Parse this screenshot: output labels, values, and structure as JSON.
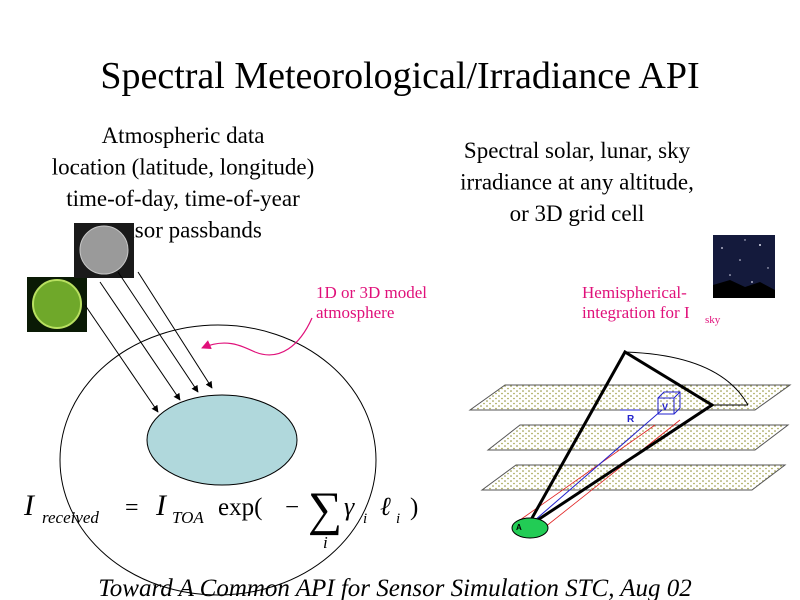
{
  "title": "Spectral Meteorological/Irradiance API",
  "inputs": {
    "lines": [
      "Atmospheric data",
      "location (latitude, longitude)",
      "time-of-day, time-of-year",
      "sensor passbands"
    ]
  },
  "outputs": {
    "lines": [
      "Spectral solar, lunar, sky",
      "irradiance at any altitude,",
      "or 3D grid cell"
    ]
  },
  "model_label": {
    "lines": [
      "1D or 3D model",
      "atmosphere"
    ]
  },
  "sky_label": {
    "lines": [
      "Hemispherical-",
      "integration for I"
    ],
    "subscript": "sky"
  },
  "vector_labels": {
    "r": "R",
    "v": "V",
    "a": "A"
  },
  "equation": {
    "tokens": [
      "I",
      "received",
      "=",
      "I",
      "TOA",
      "exp(",
      "−",
      "∑",
      "γ",
      "i",
      "ℓ",
      "i",
      ")",
      "i"
    ]
  },
  "footer": "Toward A Common API for Sensor Simulation  STC, Aug 02"
}
